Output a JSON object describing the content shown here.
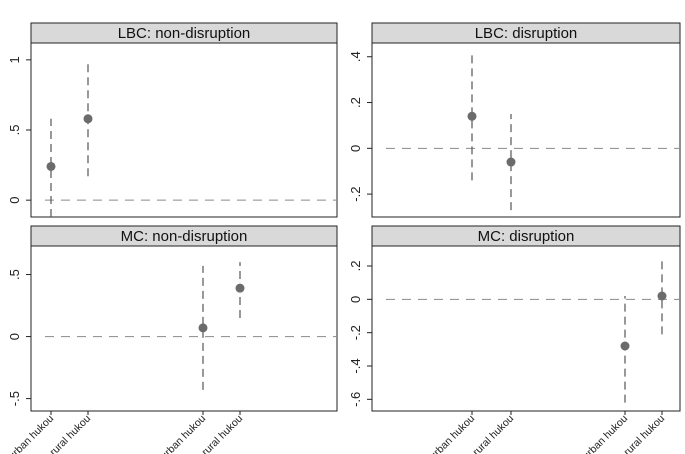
{
  "chart_data": [
    {
      "type": "scatter",
      "title": "LBC: non-disruption",
      "ylim": [
        -0.12,
        1.12
      ],
      "yticks": [
        0,
        0.5,
        1
      ],
      "ytick_labels": [
        "0",
        ".5",
        "1"
      ],
      "reference_line": 0,
      "x_slots": [
        "urban hukou",
        "rural hukou",
        "urban hukou",
        "rural hukou"
      ],
      "estimates": [
        {
          "slot": 0,
          "label": "urban hukou",
          "value": 0.24,
          "ci": [
            -0.12,
            0.58
          ]
        },
        {
          "slot": 1,
          "label": "rural hukou",
          "value": 0.58,
          "ci": [
            0.17,
            0.98
          ]
        }
      ]
    },
    {
      "type": "scatter",
      "title": "LBC: disruption",
      "ylim": [
        -0.3,
        0.46
      ],
      "yticks": [
        -0.2,
        0,
        0.2,
        0.4
      ],
      "ytick_labels": [
        "-.2",
        "0",
        ".2",
        ".4"
      ],
      "reference_line": 0,
      "x_slots": [
        "urban hukou",
        "rural hukou",
        "urban hukou",
        "rural hukou"
      ],
      "estimates": [
        {
          "slot": 0,
          "label": "urban hukou",
          "value": 0.14,
          "ci": [
            -0.14,
            0.42
          ]
        },
        {
          "slot": 1,
          "label": "rural hukou",
          "value": -0.06,
          "ci": [
            -0.27,
            0.15
          ]
        }
      ]
    },
    {
      "type": "scatter",
      "title": "MC: non-disruption",
      "ylim": [
        -0.6,
        0.73
      ],
      "yticks": [
        -0.5,
        0,
        0.5
      ],
      "ytick_labels": [
        "-.5",
        "0",
        ".5"
      ],
      "reference_line": 0,
      "x_slots": [
        "urban hukou",
        "rural hukou",
        "urban hukou",
        "rural hukou"
      ],
      "x_tick_labels": [
        "urban hukou",
        "rural hukou",
        "urban hukou",
        "rural hukou"
      ],
      "estimates": [
        {
          "slot": 2,
          "label": "urban hukou",
          "value": 0.07,
          "ci": [
            -0.43,
            0.57
          ]
        },
        {
          "slot": 3,
          "label": "rural hukou",
          "value": 0.39,
          "ci": [
            0.15,
            0.6
          ]
        }
      ]
    },
    {
      "type": "scatter",
      "title": "MC: disruption",
      "ylim": [
        -0.67,
        0.32
      ],
      "yticks": [
        -0.6,
        -0.4,
        -0.2,
        0,
        0.2
      ],
      "ytick_labels": [
        "-.6",
        "-.4",
        "-.2",
        "0",
        ".2"
      ],
      "reference_line": 0,
      "x_slots": [
        "urban hukou",
        "rural hukou",
        "urban hukou",
        "rural hukou"
      ],
      "x_tick_labels": [
        "urban hukou",
        "rural hukou",
        "urban hukou",
        "rural hukou"
      ],
      "estimates": [
        {
          "slot": 2,
          "label": "urban hukou",
          "value": -0.28,
          "ci": [
            -0.62,
            0.02
          ]
        },
        {
          "slot": 3,
          "label": "rural hukou",
          "value": 0.02,
          "ci": [
            -0.21,
            0.24
          ]
        }
      ]
    }
  ],
  "style": {
    "point_color": "#6b6b6b",
    "ci_color": "#555555",
    "reference_line_color": "#8a8a8a",
    "strip_background": "#d9d9d9"
  }
}
